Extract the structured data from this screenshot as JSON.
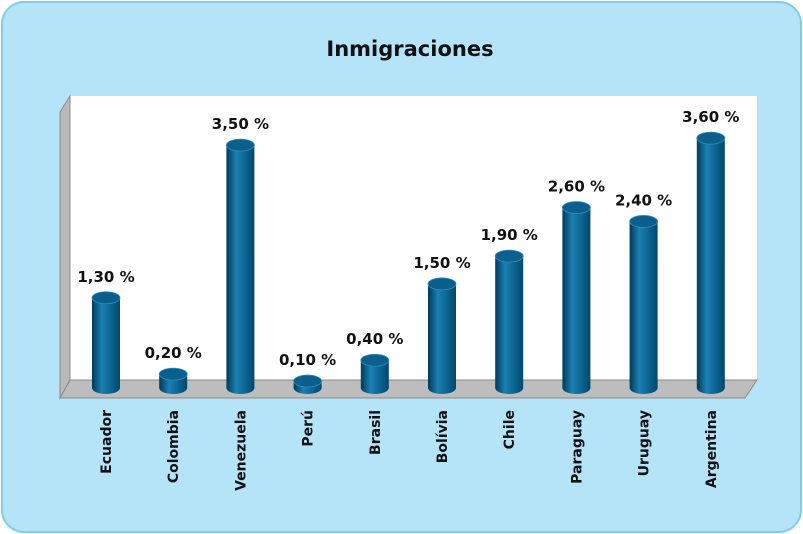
{
  "chart_data": {
    "type": "bar",
    "title": "Inmigraciones",
    "categories": [
      "Ecuador",
      "Colombia",
      "Venezuela",
      "Perú",
      "Brasil",
      "Bolívia",
      "Chile",
      "Paraguay",
      "Uruguay",
      "Argentina"
    ],
    "values": [
      1.3,
      0.2,
      3.5,
      0.1,
      0.4,
      1.5,
      1.9,
      2.6,
      2.4,
      3.6
    ],
    "value_labels": [
      "1,30 %",
      "0,20 %",
      "3,50 %",
      "0,10 %",
      "0,40 %",
      "1,50 %",
      "1,90 %",
      "2,60 %",
      "2,40 %",
      "3,60 %"
    ],
    "color": "#0a5f8c"
  }
}
